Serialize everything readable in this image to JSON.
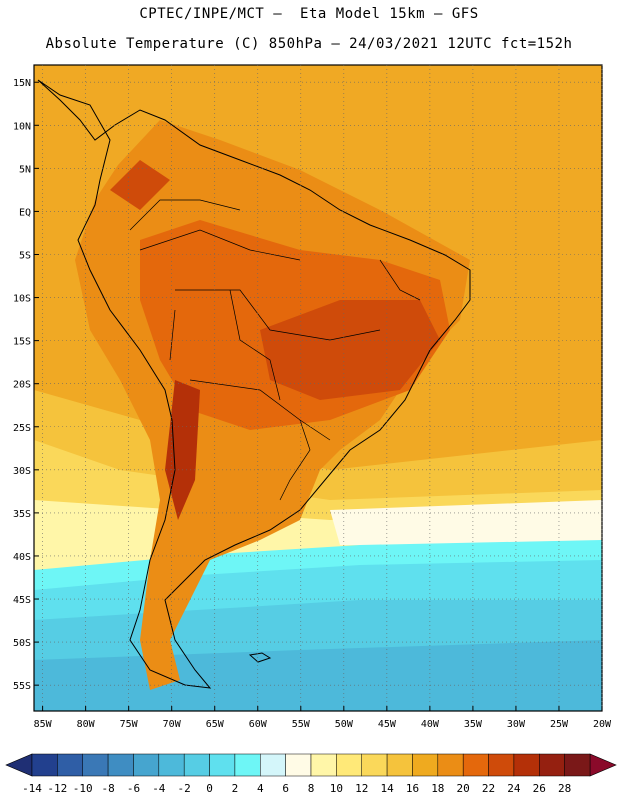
{
  "header": {
    "line1": "CPTEC/INPE/MCT –  Eta Model 15km – GFS",
    "line2": "Absolute Temperature (C) 850hPa – 24/03/2021 12UTC fct=152h"
  },
  "map": {
    "lat_labels": [
      "15N",
      "10N",
      "5N",
      "EQ",
      "5S",
      "10S",
      "15S",
      "20S",
      "25S",
      "30S",
      "35S",
      "40S",
      "45S",
      "50S",
      "55S"
    ],
    "lat_values": [
      15,
      10,
      5,
      0,
      -5,
      -10,
      -15,
      -20,
      -25,
      -30,
      -35,
      -40,
      -45,
      -50,
      -55
    ],
    "lon_labels": [
      "85W",
      "80W",
      "75W",
      "70W",
      "65W",
      "60W",
      "55W",
      "50W",
      "45W",
      "40W",
      "35W",
      "30W",
      "25W",
      "20W"
    ],
    "lon_values": [
      -85,
      -80,
      -75,
      -70,
      -65,
      -60,
      -55,
      -50,
      -45,
      -40,
      -35,
      -30,
      -25,
      -20
    ],
    "lat_range": [
      -58,
      17
    ],
    "lon_range": [
      -86,
      -20
    ],
    "grid": "dotted"
  },
  "colorbar": {
    "labels": [
      "-14",
      "-12",
      "-10",
      "-8",
      "-6",
      "-4",
      "-2",
      "0",
      "2",
      "4",
      "6",
      "8",
      "10",
      "12",
      "14",
      "16",
      "18",
      "20",
      "22",
      "24",
      "26",
      "28"
    ],
    "under_color": "#1f2f74",
    "over_color": "#8a0a2a",
    "colors": [
      "#22408e",
      "#2f5ea6",
      "#3a78b6",
      "#3f8dc2",
      "#46a5cf",
      "#4db9da",
      "#56cde4",
      "#5fe0ee",
      "#6ef6f6",
      "#d4f6fa",
      "#fffbe6",
      "#fff6a8",
      "#ffe978",
      "#fad85a",
      "#f5c33c",
      "#efaa1f",
      "#eb8d15",
      "#e4680c",
      "#cf4b0a",
      "#b43008",
      "#952010",
      "#7a1818"
    ]
  }
}
